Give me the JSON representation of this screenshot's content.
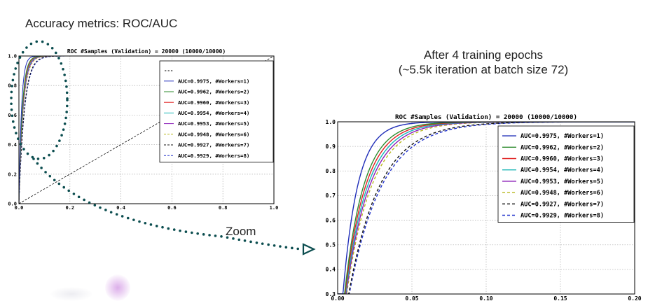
{
  "slide": {
    "title": "Accuracy metrics: ROC/AUC",
    "caption_line1": "After 4 training epochs",
    "caption_line2": "(~5.5k iteration at batch size 72)",
    "zoom_label": "Zoom",
    "annotation_color": "#0b4d4f"
  },
  "chart_data": [
    {
      "type": "line",
      "title": "ROC #Samples (Validation) = 20000 (10000/10000)",
      "xlim": [
        0,
        1
      ],
      "ylim": [
        0,
        1
      ],
      "x_ticks": [
        "0.0",
        "0.2",
        "0.4",
        "0.6",
        "0.8",
        "1.0"
      ],
      "y_ticks": [
        "0.0",
        "0.2",
        "0.4",
        "0.6",
        "0.8",
        "1.0"
      ],
      "grid": true,
      "legend_position": "top-right",
      "reference_line": {
        "label": "---",
        "points": [
          [
            0,
            0
          ],
          [
            1,
            1
          ]
        ],
        "style": "dashed",
        "color": "#000000"
      },
      "series": [
        {
          "name": "AUC=0.9975, #Workers=1)",
          "color": "#1f2db8",
          "style": "solid",
          "a": 0.01
        },
        {
          "name": "AUC=0.9962, #Workers=2)",
          "color": "#2e8b2e",
          "style": "solid",
          "a": 0.013
        },
        {
          "name": "AUC=0.9960, #Workers=3)",
          "color": "#e02020",
          "style": "solid",
          "a": 0.014
        },
        {
          "name": "AUC=0.9954, #Workers=4)",
          "color": "#17b5b5",
          "style": "solid",
          "a": 0.015
        },
        {
          "name": "AUC=0.9953, #Workers=5)",
          "color": "#8b1fb8",
          "style": "solid",
          "a": 0.016
        },
        {
          "name": "AUC=0.9948, #Workers=6)",
          "color": "#b8b81f",
          "style": "dashed",
          "a": 0.017
        },
        {
          "name": "AUC=0.9927, #Workers=7)",
          "color": "#111111",
          "style": "dashed",
          "a": 0.021
        },
        {
          "name": "AUC=0.9929, #Workers=8)",
          "color": "#2233cc",
          "style": "dashed",
          "a": 0.022
        }
      ]
    },
    {
      "type": "line",
      "title": "ROC #Samples (Validation) = 20000 (10000/10000)",
      "xlim": [
        0,
        0.2
      ],
      "ylim": [
        0.3,
        1.0
      ],
      "x_ticks": [
        "0.00",
        "0.05",
        "0.10",
        "0.15",
        "0.20"
      ],
      "y_ticks": [
        "0.3",
        "0.4",
        "0.5",
        "0.6",
        "0.7",
        "0.8",
        "0.9",
        "1.0"
      ],
      "grid": true,
      "legend_position": "top-right",
      "series": [
        {
          "name": "AUC=0.9975, #Workers=1)",
          "color": "#1f2db8",
          "style": "solid",
          "a": 0.01
        },
        {
          "name": "AUC=0.9962, #Workers=2)",
          "color": "#2e8b2e",
          "style": "solid",
          "a": 0.013
        },
        {
          "name": "AUC=0.9960, #Workers=3)",
          "color": "#e02020",
          "style": "solid",
          "a": 0.014
        },
        {
          "name": "AUC=0.9954, #Workers=4)",
          "color": "#17b5b5",
          "style": "solid",
          "a": 0.015
        },
        {
          "name": "AUC=0.9953, #Workers=5)",
          "color": "#8b1fb8",
          "style": "solid",
          "a": 0.016
        },
        {
          "name": "AUC=0.9948, #Workers=6)",
          "color": "#b8b81f",
          "style": "dashed",
          "a": 0.017
        },
        {
          "name": "AUC=0.9927, #Workers=7)",
          "color": "#111111",
          "style": "dashed",
          "a": 0.021
        },
        {
          "name": "AUC=0.9929, #Workers=8)",
          "color": "#2233cc",
          "style": "dashed",
          "a": 0.022
        }
      ]
    }
  ]
}
